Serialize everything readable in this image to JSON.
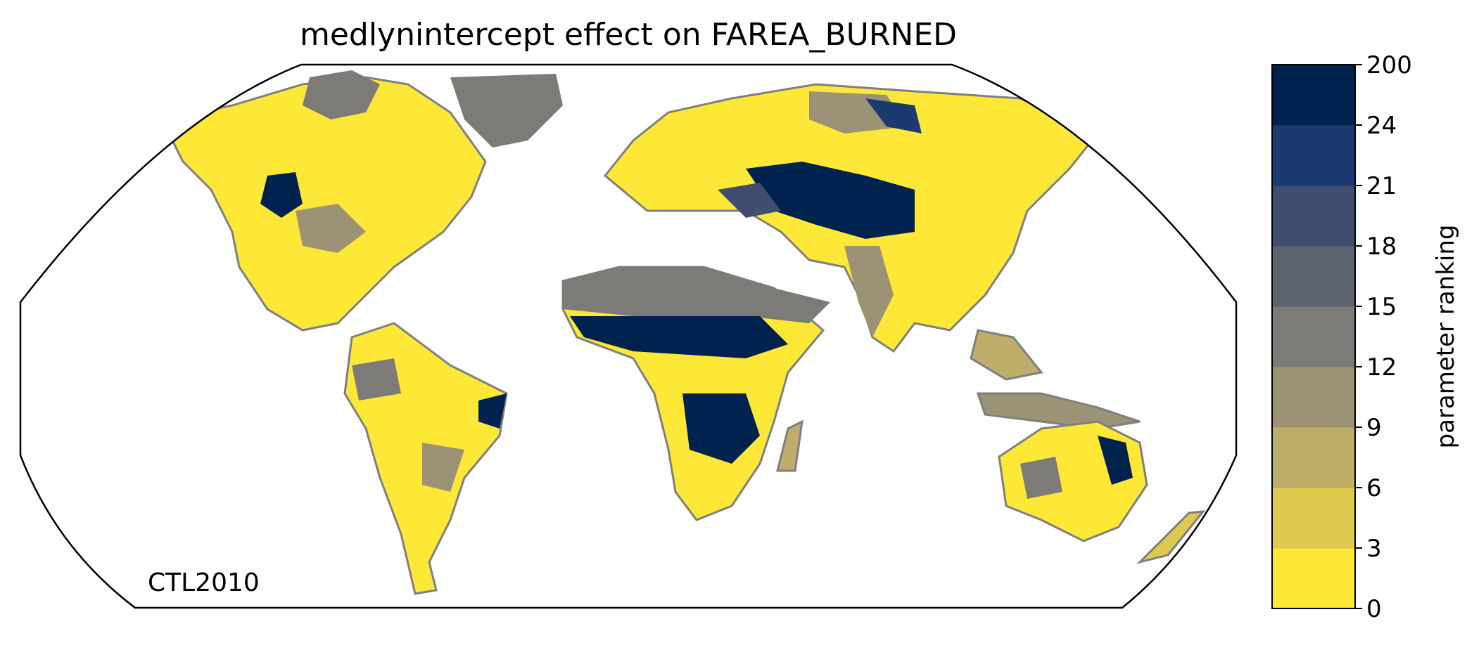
{
  "title": "medlynintercept effect on FAREA_BURNED",
  "case_label": "CTL2010",
  "colorbar": {
    "label": "parameter ranking",
    "ticks": [
      "0",
      "3",
      "6",
      "9",
      "12",
      "15",
      "18",
      "21",
      "24",
      "200"
    ],
    "colors": [
      "#fde838",
      "#dfc94e",
      "#bfae6a",
      "#9c9275",
      "#7c7b78",
      "#5d6470",
      "#404d6f",
      "#1c3a6f",
      "#00224e"
    ]
  },
  "map": {
    "projection": "Robinson",
    "ocean_color": "#ffffff",
    "coastline_color": "#7f7f7f",
    "no_data_color": "#ffffff"
  }
}
